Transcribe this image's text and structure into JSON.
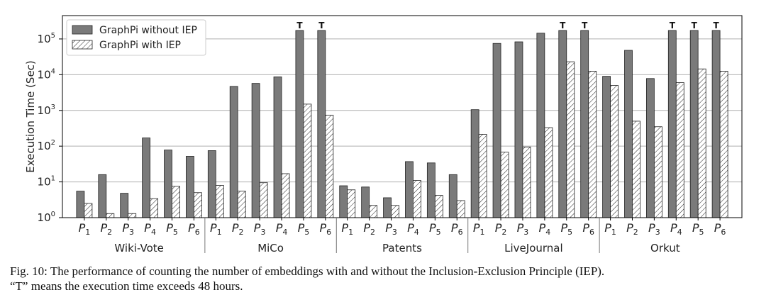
{
  "chart_data": {
    "type": "bar",
    "title": "",
    "ylabel": "Execution Time (Sec)",
    "xlabel": "",
    "yscale": "log",
    "ylim": [
      1,
      450000
    ],
    "yticks": [
      {
        "value": 1,
        "base": "10",
        "exp": "0"
      },
      {
        "value": 10,
        "base": "10",
        "exp": "1"
      },
      {
        "value": 100,
        "base": "10",
        "exp": "2"
      },
      {
        "value": 1000,
        "base": "10",
        "exp": "3"
      },
      {
        "value": 10000,
        "base": "10",
        "exp": "4"
      },
      {
        "value": 100000,
        "base": "10",
        "exp": "5"
      }
    ],
    "grid": true,
    "legend_position": "top-left",
    "timeout_marker": "T",
    "series": [
      {
        "name": "GraphPi without IEP",
        "color": "#7a7a7a",
        "pattern": "solid"
      },
      {
        "name": "GraphPi with IEP",
        "color": "#ffffff",
        "pattern": "hatch"
      }
    ],
    "groups": [
      {
        "name": "Wiki-Vote",
        "categories": [
          {
            "label": "P",
            "sub": "1",
            "values": [
              5.5,
              2.5
            ],
            "timeout": [
              false,
              false
            ]
          },
          {
            "label": "P",
            "sub": "2",
            "values": [
              16,
              1.3
            ],
            "timeout": [
              false,
              false
            ]
          },
          {
            "label": "P",
            "sub": "3",
            "values": [
              4.8,
              1.3
            ],
            "timeout": [
              false,
              false
            ]
          },
          {
            "label": "P",
            "sub": "4",
            "values": [
              170,
              3.4
            ],
            "timeout": [
              false,
              false
            ]
          },
          {
            "label": "P",
            "sub": "5",
            "values": [
              78,
              7.5
            ],
            "timeout": [
              false,
              false
            ]
          },
          {
            "label": "P",
            "sub": "6",
            "values": [
              52,
              5
            ],
            "timeout": [
              false,
              false
            ]
          }
        ]
      },
      {
        "name": "MiCo",
        "categories": [
          {
            "label": "P",
            "sub": "1",
            "values": [
              75,
              8
            ],
            "timeout": [
              false,
              false
            ]
          },
          {
            "label": "P",
            "sub": "2",
            "values": [
              4700,
              5.5
            ],
            "timeout": [
              false,
              false
            ]
          },
          {
            "label": "P",
            "sub": "3",
            "values": [
              5700,
              9.5
            ],
            "timeout": [
              false,
              false
            ]
          },
          {
            "label": "P",
            "sub": "4",
            "values": [
              8700,
              17
            ],
            "timeout": [
              false,
              false
            ]
          },
          {
            "label": "P",
            "sub": "5",
            "values": [
              172800,
              1500
            ],
            "timeout": [
              true,
              false
            ]
          },
          {
            "label": "P",
            "sub": "6",
            "values": [
              172800,
              740
            ],
            "timeout": [
              true,
              false
            ]
          }
        ]
      },
      {
        "name": "Patents",
        "categories": [
          {
            "label": "P",
            "sub": "1",
            "values": [
              7.8,
              6
            ],
            "timeout": [
              false,
              false
            ]
          },
          {
            "label": "P",
            "sub": "2",
            "values": [
              7.2,
              2.2
            ],
            "timeout": [
              false,
              false
            ]
          },
          {
            "label": "P",
            "sub": "3",
            "values": [
              3.6,
              2.2
            ],
            "timeout": [
              false,
              false
            ]
          },
          {
            "label": "P",
            "sub": "4",
            "values": [
              37,
              11
            ],
            "timeout": [
              false,
              false
            ]
          },
          {
            "label": "P",
            "sub": "5",
            "values": [
              34,
              4.2
            ],
            "timeout": [
              false,
              false
            ]
          },
          {
            "label": "P",
            "sub": "6",
            "values": [
              16,
              3
            ],
            "timeout": [
              false,
              false
            ]
          }
        ]
      },
      {
        "name": "LiveJournal",
        "categories": [
          {
            "label": "P",
            "sub": "1",
            "values": [
              1050,
              215
            ],
            "timeout": [
              false,
              false
            ]
          },
          {
            "label": "P",
            "sub": "2",
            "values": [
              75000,
              68
            ],
            "timeout": [
              false,
              false
            ]
          },
          {
            "label": "P",
            "sub": "3",
            "values": [
              83000,
              95
            ],
            "timeout": [
              false,
              false
            ]
          },
          {
            "label": "P",
            "sub": "4",
            "values": [
              145000,
              330
            ],
            "timeout": [
              false,
              false
            ]
          },
          {
            "label": "P",
            "sub": "5",
            "values": [
              172800,
              23000
            ],
            "timeout": [
              true,
              false
            ]
          },
          {
            "label": "P",
            "sub": "6",
            "values": [
              172800,
              12500
            ],
            "timeout": [
              true,
              false
            ]
          }
        ]
      },
      {
        "name": "Orkut",
        "categories": [
          {
            "label": "P",
            "sub": "1",
            "values": [
              9000,
              5000
            ],
            "timeout": [
              false,
              false
            ]
          },
          {
            "label": "P",
            "sub": "2",
            "values": [
              48000,
              500
            ],
            "timeout": [
              false,
              false
            ]
          },
          {
            "label": "P",
            "sub": "3",
            "values": [
              7800,
              350
            ],
            "timeout": [
              false,
              false
            ]
          },
          {
            "label": "P",
            "sub": "4",
            "values": [
              172800,
              6000
            ],
            "timeout": [
              true,
              false
            ]
          },
          {
            "label": "P",
            "sub": "5",
            "values": [
              172800,
              14500
            ],
            "timeout": [
              true,
              false
            ]
          },
          {
            "label": "P",
            "sub": "6",
            "values": [
              172800,
              12500
            ],
            "timeout": [
              true,
              false
            ]
          }
        ]
      }
    ]
  },
  "caption": {
    "line1": "Fig. 10: The performance of counting the number of embeddings with and without the Inclusion-Exclusion Principle (IEP).",
    "line2": "“T” means the execution time exceeds 48 hours."
  }
}
